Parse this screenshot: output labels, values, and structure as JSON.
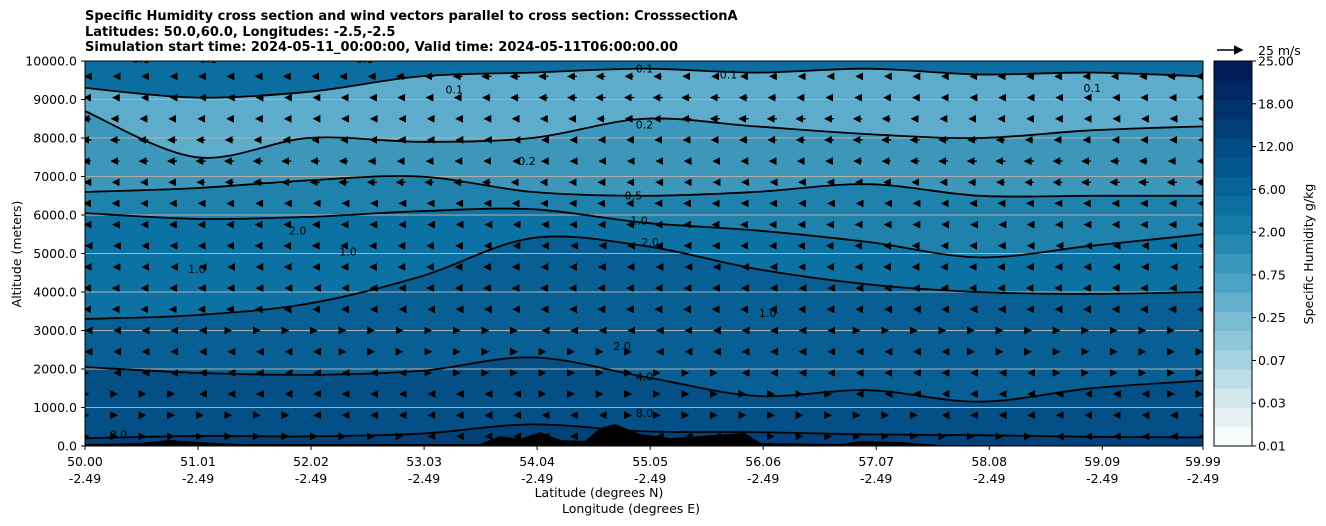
{
  "chart_data": {
    "type": "contour-cross-section",
    "title_lines": [
      "Specific Humidity cross section and wind vectors parallel to cross section: CrosssectionA",
      "Latitudes: 50.0,60.0, Longitudes: -2.5,-2.5",
      "Simulation start time: 2024-05-11_00:00:00, Valid time: 2024-05-11T06:00:00.00"
    ],
    "xlabel_line1": "Latitude (degrees N)",
    "xlabel_line2": "Longitude (degrees E)",
    "ylabel": "Altitude (meters)",
    "x_ticks": [
      {
        "v": 50.0,
        "lat": "50.00",
        "lon": "-2.49"
      },
      {
        "v": 51.01,
        "lat": "51.01",
        "lon": "-2.49"
      },
      {
        "v": 52.02,
        "lat": "52.02",
        "lon": "-2.49"
      },
      {
        "v": 53.03,
        "lat": "53.03",
        "lon": "-2.49"
      },
      {
        "v": 54.04,
        "lat": "54.04",
        "lon": "-2.49"
      },
      {
        "v": 55.05,
        "lat": "55.05",
        "lon": "-2.49"
      },
      {
        "v": 56.06,
        "lat": "56.06",
        "lon": "-2.49"
      },
      {
        "v": 57.07,
        "lat": "57.07",
        "lon": "-2.49"
      },
      {
        "v": 58.08,
        "lat": "58.08",
        "lon": "-2.49"
      },
      {
        "v": 59.09,
        "lat": "59.09",
        "lon": "-2.49"
      },
      {
        "v": 59.99,
        "lat": "59.99",
        "lon": "-2.49"
      }
    ],
    "xlim": [
      50.0,
      59.99
    ],
    "y_ticks": [
      "0.0",
      "1000.0",
      "2000.0",
      "3000.0",
      "4000.0",
      "5000.0",
      "6000.0",
      "7000.0",
      "8000.0",
      "9000.0",
      "10000.0"
    ],
    "ylim": [
      0,
      10000
    ],
    "contours": [
      {
        "level": "8.0",
        "heights": [
          200,
          260,
          250,
          320,
          560,
          380,
          360,
          300,
          280,
          240,
          220
        ]
      },
      {
        "level": "4.0",
        "heights": [
          2050,
          1900,
          1850,
          1950,
          2300,
          1800,
          1300,
          1450,
          1150,
          1500,
          1700
        ]
      },
      {
        "level": "2.0",
        "heights": [
          3300,
          3400,
          3700,
          4400,
          5400,
          5200,
          4600,
          4200,
          4000,
          3950,
          4000
        ]
      },
      {
        "level": "1.0",
        "heights": [
          6050,
          5900,
          5950,
          6100,
          6150,
          5800,
          5600,
          5300,
          4900,
          5200,
          5500
        ]
      },
      {
        "level": "0.5",
        "heights": [
          6600,
          6700,
          6900,
          7000,
          6600,
          6500,
          6600,
          6800,
          6500,
          6500,
          6500
        ]
      },
      {
        "level": "0.2",
        "heights": [
          8700,
          7500,
          8000,
          7900,
          8000,
          8500,
          8300,
          8100,
          8000,
          8200,
          8300
        ]
      },
      {
        "level": "0.1",
        "heights": [
          9300,
          9050,
          9200,
          9600,
          9700,
          9800,
          9700,
          9800,
          9650,
          9700,
          9600
        ]
      }
    ],
    "contour_labels": [
      {
        "text": "0.1",
        "x": 50.5,
        "y": 9950
      },
      {
        "text": "0.1",
        "x": 51.1,
        "y": 9950
      },
      {
        "text": "0.1",
        "x": 52.5,
        "y": 9950
      },
      {
        "text": "0.1",
        "x": 53.3,
        "y": 9150
      },
      {
        "text": "0.1",
        "x": 55.0,
        "y": 9700
      },
      {
        "text": "0.1",
        "x": 55.75,
        "y": 9550
      },
      {
        "text": "0.1",
        "x": 59.0,
        "y": 9200
      },
      {
        "text": "0.2",
        "x": 55.0,
        "y": 8250
      },
      {
        "text": "0.2",
        "x": 53.95,
        "y": 7300
      },
      {
        "text": "0.5",
        "x": 54.9,
        "y": 6400
      },
      {
        "text": "1.0",
        "x": 54.95,
        "y": 5750
      },
      {
        "text": "1.0",
        "x": 52.35,
        "y": 4950
      },
      {
        "text": "1.0",
        "x": 51.0,
        "y": 4500
      },
      {
        "text": "1.0",
        "x": 56.1,
        "y": 3350
      },
      {
        "text": "2.0",
        "x": 51.9,
        "y": 5500
      },
      {
        "text": "2.0",
        "x": 55.05,
        "y": 5200
      },
      {
        "text": "2.0",
        "x": 54.8,
        "y": 2500
      },
      {
        "text": "4.0",
        "x": 55.0,
        "y": 1700
      },
      {
        "text": "8.0",
        "x": 55.0,
        "y": 750
      },
      {
        "text": "8.0",
        "x": 50.3,
        "y": 200
      }
    ],
    "colorbar": {
      "label": "Specific Humidity g/kg",
      "ticks": [
        "0.01",
        "0.03",
        "0.07",
        "0.25",
        "0.75",
        "2.00",
        "6.00",
        "12.00",
        "18.00",
        "25.00"
      ],
      "colors": [
        "#f7fbfc",
        "#e6f2f5",
        "#d2e8ef",
        "#bcdde8",
        "#a5d2e1",
        "#8ec7da",
        "#78bbd3",
        "#62aecb",
        "#4ca2c2",
        "#3796b9",
        "#2489b1",
        "#147ca8",
        "#0b6fa0",
        "#066397",
        "#04578e",
        "#034b84",
        "#023f7a",
        "#02336f",
        "#012864",
        "#011d59"
      ]
    },
    "quiver_key": {
      "text": "25 m/s"
    }
  }
}
